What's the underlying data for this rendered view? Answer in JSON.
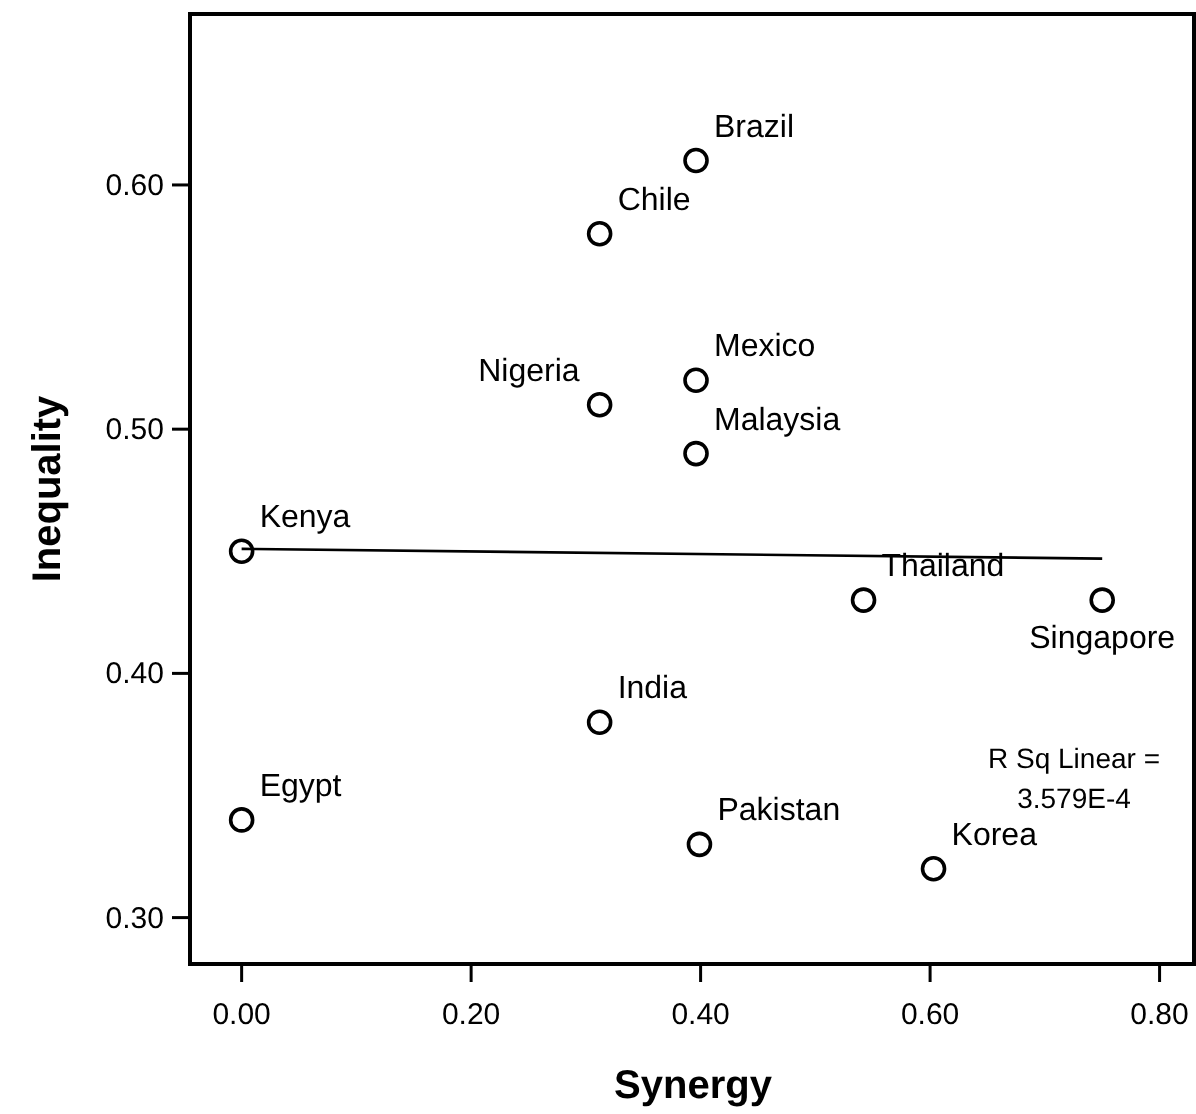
{
  "chart_data": {
    "type": "scatter",
    "xlabel": "Synergy",
    "ylabel": "Inequality",
    "xlim": [
      -0.045,
      0.83
    ],
    "ylim": [
      0.281,
      0.67
    ],
    "xticks": [
      {
        "value": 0,
        "label": "0.00"
      },
      {
        "value": 0.2,
        "label": "0.20"
      },
      {
        "value": 0.4,
        "label": "0.40"
      },
      {
        "value": 0.6,
        "label": "0.60"
      },
      {
        "value": 0.8,
        "label": "0.80"
      }
    ],
    "yticks": [
      {
        "value": 0.3,
        "label": "0.30"
      },
      {
        "value": 0.4,
        "label": "0.40"
      },
      {
        "value": 0.5,
        "label": "0.50"
      },
      {
        "value": 0.6,
        "label": "0.60"
      }
    ],
    "grid": false,
    "series": [
      {
        "marker": "circle",
        "color": "#000000",
        "x": [
          0.396,
          0.312,
          0.396,
          0.312,
          0.396,
          0,
          0.542,
          0.75,
          0.312,
          0,
          0.399,
          0.603
        ],
        "values": [
          0.61,
          0.58,
          0.52,
          0.51,
          0.49,
          0.45,
          0.43,
          0.43,
          0.38,
          0.34,
          0.33,
          0.32
        ]
      },
      {
        "type": "line",
        "color": "#000000",
        "line_style": "solid",
        "x": [
          0,
          0.75
        ],
        "values": [
          0.451,
          0.447
        ]
      }
    ],
    "annotations": [
      {
        "text": "Brazil",
        "x": 0.396,
        "y": 0.61
      },
      {
        "text": "Chile",
        "x": 0.312,
        "y": 0.58
      },
      {
        "text": "Mexico",
        "x": 0.396,
        "y": 0.52
      },
      {
        "text": "Nigeria",
        "x": 0.312,
        "y": 0.51
      },
      {
        "text": "Malaysia",
        "x": 0.396,
        "y": 0.49
      },
      {
        "text": "Kenya",
        "x": 0,
        "y": 0.45
      },
      {
        "text": "Thailand",
        "x": 0.542,
        "y": 0.43
      },
      {
        "text": "Singapore",
        "x": 0.75,
        "y": 0.43
      },
      {
        "text": "India",
        "x": 0.312,
        "y": 0.38
      },
      {
        "text": "Egypt",
        "x": 0,
        "y": 0.34
      },
      {
        "text": "Pakistan",
        "x": 0.399,
        "y": 0.33
      },
      {
        "text": "Korea",
        "x": 0.603,
        "y": 0.32
      },
      "R Sq Linear = 3.579E-4"
    ]
  }
}
